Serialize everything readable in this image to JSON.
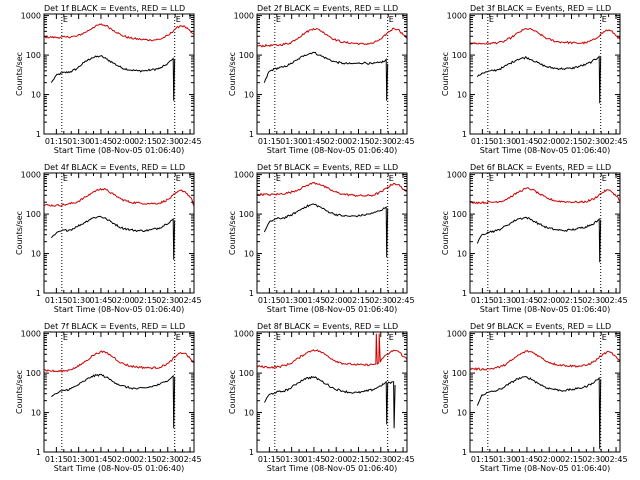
{
  "figure": {
    "x_tick_labels": [
      "01:15",
      "01:30",
      "01:45",
      "02:00",
      "02:15",
      "02:30",
      "02:45"
    ],
    "y_tick_labels": [
      "1",
      "10",
      "100",
      "1000"
    ],
    "ylabel": "Counts/sec",
    "xlabel": "Start Time (08-Nov-05 01:06:40)",
    "marker_labels": [
      "E",
      "E"
    ],
    "colors": {
      "events": "#000000",
      "lld": "#cc0000"
    }
  },
  "chart_data": [
    {
      "type": "line",
      "title": "Det 1f  BLACK = Events, RED = LLD",
      "x_units": "minutes after 01:06:40",
      "xlim": [
        0,
        101
      ],
      "ylim": [
        1,
        1100
      ],
      "yscale": "log",
      "xlabel": "Start Time (08-Nov-05 01:06:40)",
      "ylabel": "Counts/sec",
      "markers": [
        12,
        88
      ],
      "series": [
        {
          "name": "Events",
          "color": "#000000",
          "x": [
            5,
            8,
            12,
            18,
            22,
            27,
            32,
            38,
            42,
            47,
            52,
            58,
            63,
            68,
            72,
            78,
            82,
            86,
            87,
            87.3,
            88
          ],
          "y": [
            20,
            30,
            35,
            38,
            45,
            65,
            85,
            95,
            80,
            62,
            48,
            42,
            40,
            40,
            42,
            46,
            56,
            75,
            82,
            7,
            80
          ]
        },
        {
          "name": "LLD",
          "color": "#cc0000",
          "x": [
            0,
            8,
            15,
            22,
            28,
            33,
            38,
            42,
            47,
            52,
            58,
            65,
            72,
            78,
            84,
            88,
            92,
            95,
            99,
            101
          ],
          "y": [
            290,
            280,
            285,
            300,
            380,
            500,
            600,
            560,
            420,
            320,
            270,
            250,
            240,
            250,
            320,
            450,
            560,
            520,
            380,
            330
          ]
        }
      ]
    },
    {
      "type": "line",
      "title": "Det 2f  BLACK = Events, RED = LLD",
      "x_units": "minutes after 01:06:40",
      "xlim": [
        0,
        101
      ],
      "ylim": [
        1,
        1100
      ],
      "yscale": "log",
      "xlabel": "Start Time (08-Nov-05 01:06:40)",
      "ylabel": "Counts/sec",
      "markers": [
        12,
        88
      ],
      "series": [
        {
          "name": "Events",
          "color": "#000000",
          "x": [
            5,
            8,
            12,
            18,
            22,
            27,
            32,
            38,
            42,
            47,
            52,
            58,
            63,
            68,
            72,
            78,
            82,
            86,
            87,
            87.3,
            88
          ],
          "y": [
            20,
            38,
            45,
            50,
            58,
            75,
            100,
            118,
            100,
            82,
            68,
            62,
            60,
            62,
            64,
            60,
            64,
            70,
            78,
            7,
            60
          ]
        },
        {
          "name": "LLD",
          "color": "#cc0000",
          "x": [
            0,
            8,
            15,
            22,
            28,
            33,
            38,
            42,
            47,
            52,
            58,
            65,
            72,
            78,
            84,
            88,
            92,
            95,
            99,
            101
          ],
          "y": [
            170,
            175,
            180,
            200,
            280,
            380,
            470,
            440,
            330,
            250,
            210,
            200,
            190,
            200,
            260,
            370,
            480,
            450,
            320,
            270
          ]
        }
      ]
    },
    {
      "type": "line",
      "title": "Det 3f  BLACK = Events, RED = LLD",
      "x_units": "minutes after 01:06:40",
      "xlim": [
        0,
        101
      ],
      "ylim": [
        1,
        1100
      ],
      "yscale": "log",
      "xlabel": "Start Time (08-Nov-05 01:06:40)",
      "ylabel": "Counts/sec",
      "markers": [
        12,
        88
      ],
      "series": [
        {
          "name": "Events",
          "color": "#000000",
          "x": [
            5,
            8,
            12,
            18,
            22,
            27,
            32,
            38,
            42,
            47,
            52,
            58,
            63,
            68,
            72,
            78,
            82,
            86,
            87,
            87.3,
            88
          ],
          "y": [
            28,
            35,
            38,
            42,
            48,
            62,
            78,
            88,
            75,
            60,
            50,
            46,
            45,
            46,
            50,
            58,
            68,
            85,
            92,
            6,
            90
          ]
        },
        {
          "name": "LLD",
          "color": "#cc0000",
          "x": [
            0,
            8,
            15,
            22,
            28,
            33,
            38,
            42,
            47,
            52,
            58,
            65,
            72,
            78,
            84,
            88,
            92,
            95,
            99,
            101
          ],
          "y": [
            200,
            195,
            200,
            215,
            280,
            380,
            470,
            440,
            340,
            260,
            220,
            210,
            200,
            205,
            250,
            340,
            430,
            410,
            300,
            250
          ]
        }
      ]
    },
    {
      "type": "line",
      "title": "Det 4f  BLACK = Events, RED = LLD",
      "x_units": "minutes after 01:06:40",
      "xlim": [
        0,
        101
      ],
      "ylim": [
        1,
        1100
      ],
      "yscale": "log",
      "xlabel": "Start Time (08-Nov-05 01:06:40)",
      "ylabel": "Counts/sec",
      "markers": [
        12,
        88
      ],
      "series": [
        {
          "name": "Events",
          "color": "#000000",
          "x": [
            5,
            8,
            12,
            18,
            22,
            27,
            32,
            38,
            42,
            47,
            52,
            58,
            63,
            68,
            72,
            78,
            82,
            86,
            87,
            87.3,
            88
          ],
          "y": [
            25,
            32,
            38,
            40,
            48,
            60,
            78,
            88,
            75,
            58,
            45,
            40,
            38,
            38,
            40,
            45,
            55,
            70,
            75,
            7,
            70
          ]
        },
        {
          "name": "LLD",
          "color": "#cc0000",
          "x": [
            0,
            8,
            15,
            22,
            28,
            33,
            38,
            42,
            47,
            52,
            58,
            65,
            72,
            78,
            84,
            88,
            92,
            95,
            99,
            101
          ],
          "y": [
            170,
            165,
            175,
            200,
            270,
            360,
            440,
            410,
            310,
            240,
            200,
            190,
            185,
            190,
            240,
            320,
            400,
            370,
            260,
            160
          ]
        }
      ]
    },
    {
      "type": "line",
      "title": "Det 5f  BLACK = Events, RED = LLD",
      "x_units": "minutes after 01:06:40",
      "xlim": [
        0,
        101
      ],
      "ylim": [
        1,
        1100
      ],
      "yscale": "log",
      "xlabel": "Start Time (08-Nov-05 01:06:40)",
      "ylabel": "Counts/sec",
      "markers": [
        12,
        88
      ],
      "series": [
        {
          "name": "Events",
          "color": "#000000",
          "x": [
            5,
            8,
            12,
            18,
            22,
            27,
            32,
            38,
            42,
            47,
            52,
            58,
            63,
            68,
            72,
            78,
            82,
            86,
            87,
            87.3,
            88
          ],
          "y": [
            35,
            60,
            75,
            80,
            90,
            115,
            150,
            180,
            155,
            120,
            100,
            90,
            88,
            90,
            95,
            105,
            120,
            140,
            150,
            8,
            140
          ]
        },
        {
          "name": "LLD",
          "color": "#cc0000",
          "x": [
            0,
            8,
            15,
            22,
            28,
            33,
            38,
            42,
            47,
            52,
            58,
            65,
            72,
            78,
            84,
            88,
            92,
            95,
            99,
            101
          ],
          "y": [
            320,
            310,
            320,
            350,
            420,
            520,
            620,
            580,
            460,
            370,
            320,
            300,
            290,
            300,
            370,
            480,
            600,
            560,
            420,
            380
          ]
        }
      ]
    },
    {
      "type": "line",
      "title": "Det 6f  BLACK = Events, RED = LLD",
      "x_units": "minutes after 01:06:40",
      "xlim": [
        0,
        101
      ],
      "ylim": [
        1,
        1100
      ],
      "yscale": "log",
      "xlabel": "Start Time (08-Nov-05 01:06:40)",
      "ylabel": "Counts/sec",
      "markers": [
        12,
        88
      ],
      "series": [
        {
          "name": "Events",
          "color": "#000000",
          "x": [
            5,
            8,
            12,
            18,
            22,
            27,
            32,
            38,
            42,
            47,
            52,
            58,
            63,
            68,
            72,
            78,
            82,
            86,
            87,
            87.3,
            88
          ],
          "y": [
            18,
            30,
            35,
            38,
            45,
            58,
            75,
            82,
            70,
            55,
            45,
            40,
            38,
            40,
            42,
            48,
            55,
            68,
            75,
            6,
            72
          ]
        },
        {
          "name": "LLD",
          "color": "#cc0000",
          "x": [
            0,
            8,
            15,
            22,
            28,
            33,
            38,
            42,
            47,
            52,
            58,
            65,
            72,
            78,
            84,
            88,
            92,
            95,
            99,
            101
          ],
          "y": [
            200,
            195,
            200,
            215,
            280,
            370,
            450,
            420,
            320,
            250,
            215,
            205,
            200,
            205,
            250,
            330,
            410,
            380,
            280,
            220
          ]
        }
      ]
    },
    {
      "type": "line",
      "title": "Det 7f  BLACK = Events, RED = LLD",
      "x_units": "minutes after 01:06:40",
      "xlim": [
        0,
        101
      ],
      "ylim": [
        1,
        1100
      ],
      "yscale": "log",
      "xlabel": "Start Time (08-Nov-05 01:06:40)",
      "ylabel": "Counts/sec",
      "markers": [
        12,
        88
      ],
      "series": [
        {
          "name": "Events",
          "color": "#000000",
          "x": [
            5,
            8,
            12,
            18,
            22,
            27,
            32,
            38,
            42,
            47,
            52,
            58,
            63,
            68,
            72,
            78,
            82,
            86,
            87,
            87.3,
            88
          ],
          "y": [
            25,
            30,
            35,
            40,
            48,
            62,
            82,
            92,
            78,
            60,
            48,
            42,
            40,
            42,
            45,
            52,
            62,
            78,
            85,
            4,
            80
          ]
        },
        {
          "name": "LLD",
          "color": "#cc0000",
          "x": [
            0,
            8,
            15,
            22,
            28,
            33,
            38,
            42,
            47,
            52,
            58,
            65,
            72,
            78,
            84,
            88,
            92,
            95,
            99,
            101
          ],
          "y": [
            120,
            110,
            115,
            140,
            200,
            280,
            350,
            330,
            250,
            180,
            150,
            140,
            135,
            140,
            180,
            250,
            330,
            320,
            220,
            180
          ]
        }
      ]
    },
    {
      "type": "line",
      "title": "Det 8f  BLACK = Events, RED = LLD",
      "x_units": "minutes after 01:06:40",
      "xlim": [
        0,
        101
      ],
      "ylim": [
        1,
        1100
      ],
      "yscale": "log",
      "xlabel": "Start Time (08-Nov-05 01:06:40)",
      "ylabel": "Counts/sec",
      "markers": [
        12,
        88
      ],
      "series": [
        {
          "name": "Events",
          "color": "#000000",
          "x": [
            5,
            8,
            12,
            18,
            22,
            27,
            32,
            38,
            42,
            47,
            52,
            58,
            63,
            68,
            72,
            78,
            82,
            86,
            87,
            87.3,
            88,
            92,
            92.3,
            93
          ],
          "y": [
            18,
            28,
            32,
            35,
            40,
            55,
            72,
            80,
            68,
            52,
            40,
            35,
            32,
            32,
            34,
            38,
            45,
            55,
            60,
            5,
            55,
            60,
            4,
            50
          ]
        },
        {
          "name": "LLD",
          "color": "#cc0000",
          "x": [
            0,
            8,
            15,
            22,
            28,
            33,
            38,
            42,
            47,
            52,
            58,
            65,
            72,
            78,
            80,
            80.3,
            81,
            82,
            82.3,
            83,
            84,
            88,
            92,
            95,
            99,
            101
          ],
          "y": [
            150,
            140,
            145,
            170,
            240,
            320,
            390,
            360,
            280,
            210,
            175,
            165,
            160,
            165,
            170,
            1000,
            170,
            180,
            1000,
            190,
            230,
            300,
            380,
            360,
            260,
            220
          ]
        }
      ]
    },
    {
      "type": "line",
      "title": "Det 9f  BLACK = Events, RED = LLD",
      "x_units": "minutes after 01:06:40",
      "xlim": [
        0,
        101
      ],
      "ylim": [
        1,
        1100
      ],
      "yscale": "log",
      "xlabel": "Start Time (08-Nov-05 01:06:40)",
      "ylabel": "Counts/sec",
      "markers": [
        12,
        88
      ],
      "series": [
        {
          "name": "Events",
          "color": "#000000",
          "x": [
            5,
            8,
            12,
            18,
            22,
            27,
            32,
            38,
            42,
            47,
            52,
            58,
            63,
            68,
            72,
            78,
            82,
            86,
            87,
            87.3,
            88
          ],
          "y": [
            15,
            28,
            32,
            36,
            42,
            55,
            72,
            80,
            68,
            52,
            42,
            38,
            36,
            38,
            40,
            45,
            55,
            68,
            75,
            1.2,
            70
          ]
        },
        {
          "name": "LLD",
          "color": "#cc0000",
          "x": [
            0,
            8,
            15,
            22,
            28,
            33,
            38,
            42,
            47,
            52,
            58,
            65,
            72,
            78,
            84,
            88,
            92,
            95,
            99,
            101
          ],
          "y": [
            130,
            125,
            130,
            150,
            210,
            290,
            360,
            340,
            260,
            195,
            165,
            155,
            150,
            155,
            200,
            270,
            340,
            330,
            240,
            190
          ]
        }
      ]
    }
  ]
}
